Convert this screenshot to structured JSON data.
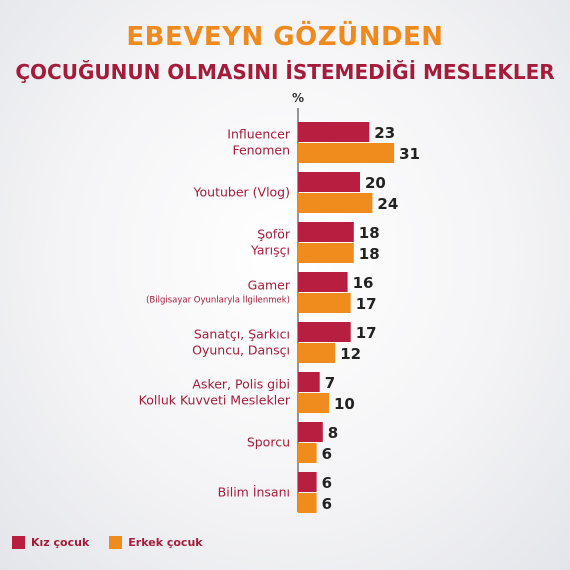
{
  "title": "EBEVEYN GÖZÜNDEN",
  "subtitle": "ÇOCUĞUNUN OLMASINI İSTEMEDİĞİ MESLEKLER",
  "colors": {
    "title": "#ef8a1f",
    "subtitle": "#a51c3a",
    "kiz": "#b81e3f",
    "erkek": "#f08b1d",
    "axis": "#555555",
    "text": "#a51c3a"
  },
  "chart_data": {
    "type": "bar",
    "orientation": "horizontal",
    "unit_label": "%",
    "categories": [
      {
        "lines": [
          "Influencer",
          "Fenomen"
        ],
        "small": ""
      },
      {
        "lines": [
          "Youtuber (Vlog)"
        ],
        "small": ""
      },
      {
        "lines": [
          "Şoför",
          "Yarışçı"
        ],
        "small": ""
      },
      {
        "lines": [
          "Gamer"
        ],
        "small": "(Bilgisayar Oyunlaryla İlgilenmek)"
      },
      {
        "lines": [
          "Sanatçı, Şarkıcı",
          "Oyuncu, Dansçı"
        ],
        "small": ""
      },
      {
        "lines": [
          "Asker, Polis gibi",
          "Kolluk Kuvveti Meslekler"
        ],
        "small": ""
      },
      {
        "lines": [
          "Sporcu"
        ],
        "small": ""
      },
      {
        "lines": [
          "Bilim İnsanı"
        ],
        "small": ""
      }
    ],
    "series": [
      {
        "name": "Kız çocuk",
        "values": [
          23,
          20,
          18,
          16,
          17,
          7,
          8,
          6
        ]
      },
      {
        "name": "Erkek çocuk",
        "values": [
          31,
          24,
          18,
          17,
          12,
          10,
          6,
          6
        ]
      }
    ],
    "xlim": [
      0,
      31
    ],
    "grid": false,
    "legend_position": "bottom-left"
  }
}
